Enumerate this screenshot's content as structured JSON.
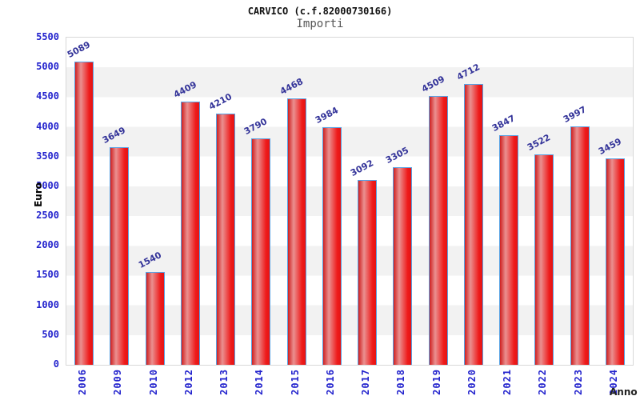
{
  "chart_data": {
    "type": "bar",
    "title": "CARVICO (c.f.82000730166)",
    "subtitle": "Importi",
    "xlabel": "Anno",
    "ylabel": "Euro",
    "categories": [
      "2006",
      "2009",
      "2010",
      "2012",
      "2013",
      "2014",
      "2015",
      "2016",
      "2017",
      "2018",
      "2019",
      "2020",
      "2021",
      "2022",
      "2023",
      "2024"
    ],
    "values": [
      5089,
      3649,
      1540,
      4409,
      4210,
      3790,
      4468,
      3984,
      3092,
      3305,
      4509,
      4712,
      3847,
      3522,
      3997,
      3459
    ],
    "ylim": [
      0,
      5500
    ],
    "ytick_step": 500,
    "yticks": [
      0,
      500,
      1000,
      1500,
      2000,
      2500,
      3000,
      3500,
      4000,
      4500,
      5000,
      5500
    ],
    "legend": "none",
    "grid": "horizontal-bands-alternating",
    "colors": {
      "bar_fill": "#ee1a1a",
      "bar_highlight": "#ea9090",
      "bar_border": "#58a2e4",
      "value_label": "#333399",
      "tick_label": "#2323cd",
      "band_gray": "#f2f2f2",
      "band_white": "#ffffff",
      "plot_border": "#d8d8d8",
      "title_color": "#111111",
      "subtitle_color": "#555555",
      "axis_title_color": "#000000"
    }
  }
}
